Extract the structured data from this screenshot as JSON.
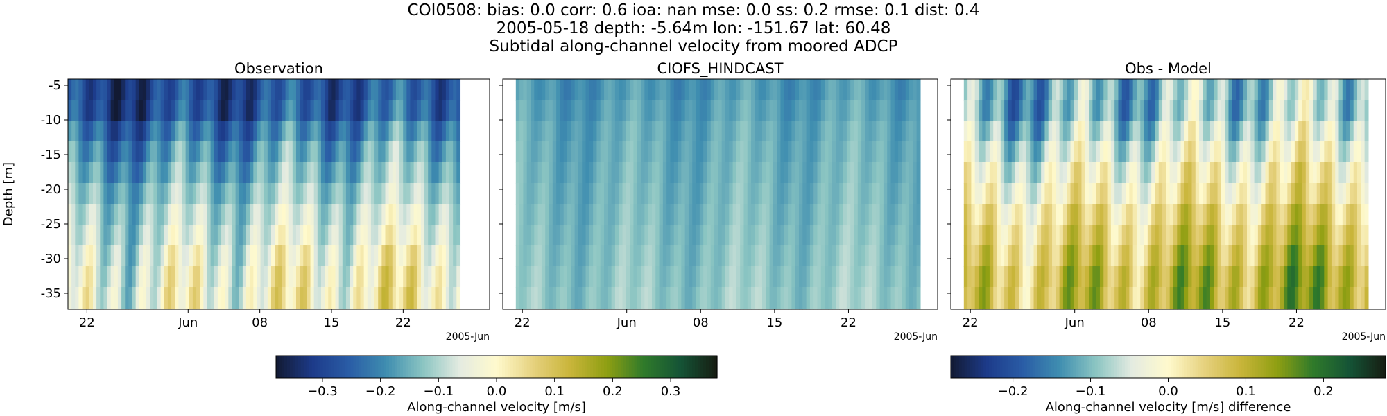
{
  "title_lines": [
    "COI0508: bias: 0.0  corr: 0.6  ioa: nan  mse: 0.0  ss: 0.2  rmse: 0.1  dist: 0.4",
    "2005-05-18 depth: -5.64m lon: -151.67 lat: 60.48",
    "Subtidal along-channel velocity from moored ADCP"
  ],
  "chart_data": [
    {
      "type": "heatmap",
      "title": "Observation",
      "ylabel": "Depth [m]",
      "x_tick_labels": [
        "22",
        "Jun",
        "08",
        "15",
        "22"
      ],
      "x_offset_label": "2005-Jun",
      "y_ticks": [
        -5,
        -10,
        -15,
        -20,
        -25,
        -30,
        -35
      ],
      "ylim": [
        -37.3,
        -4.1
      ],
      "colormap": "delta",
      "clim": [
        -0.38,
        0.38
      ],
      "depth_bins": [
        -5.6,
        -8.6,
        -11.6,
        -14.6,
        -17.6,
        -20.6,
        -23.6,
        -26.6,
        -29.6,
        -32.6,
        -35.6
      ],
      "layer_mean": [
        -0.28,
        -0.27,
        -0.22,
        -0.18,
        -0.15,
        -0.12,
        -0.09,
        -0.07,
        -0.04,
        -0.02,
        -0.01
      ],
      "layer_amplitude": [
        0.09,
        0.1,
        0.1,
        0.1,
        0.09,
        0.08,
        0.09,
        0.1,
        0.12,
        0.13,
        0.13
      ]
    },
    {
      "type": "heatmap",
      "title": "CIOFS_HINDCAST",
      "x_tick_labels": [
        "22",
        "Jun",
        "08",
        "15",
        "22"
      ],
      "x_offset_label": "2005-Jun",
      "colormap": "delta",
      "clim": [
        -0.38,
        0.38
      ],
      "depth_bins": [
        -5.6,
        -8.6,
        -11.6,
        -14.6,
        -17.6,
        -20.6,
        -23.6,
        -26.6,
        -29.6,
        -32.6,
        -35.6
      ],
      "layer_mean": [
        -0.18,
        -0.17,
        -0.16,
        -0.155,
        -0.15,
        -0.145,
        -0.14,
        -0.135,
        -0.13,
        -0.125,
        -0.12
      ],
      "layer_amplitude": [
        0.04,
        0.04,
        0.04,
        0.04,
        0.04,
        0.04,
        0.04,
        0.04,
        0.04,
        0.04,
        0.04
      ]
    },
    {
      "type": "heatmap",
      "title": "Obs - Model",
      "x_tick_labels": [
        "22",
        "Jun",
        "08",
        "15",
        "22"
      ],
      "x_offset_label": "2005-Jun",
      "colormap": "delta",
      "clim": [
        -0.28,
        0.28
      ],
      "depth_bins": [
        -5.6,
        -8.6,
        -11.6,
        -14.6,
        -17.6,
        -20.6,
        -23.6,
        -26.6,
        -29.6,
        -32.6,
        -35.6
      ],
      "layer_mean": [
        -0.1,
        -0.1,
        -0.07,
        -0.04,
        -0.01,
        0.01,
        0.04,
        0.06,
        0.08,
        0.1,
        0.1
      ],
      "layer_amplitude": [
        0.1,
        0.1,
        0.1,
        0.09,
        0.09,
        0.08,
        0.08,
        0.08,
        0.09,
        0.09,
        0.09
      ]
    }
  ],
  "colorbars": [
    {
      "label": "Along-channel velocity [m/s]",
      "ticks": [
        -0.3,
        -0.2,
        -0.1,
        0.0,
        0.1,
        0.2,
        0.3
      ],
      "tick_labels": [
        "−0.3",
        "−0.2",
        "−0.1",
        "0.0",
        "0.1",
        "0.2",
        "0.3"
      ],
      "vmin": -0.38,
      "vmax": 0.38
    },
    {
      "label": "Along-channel velocity [m/s] difference",
      "ticks": [
        -0.2,
        -0.1,
        0.0,
        0.1,
        0.2
      ],
      "tick_labels": [
        "−0.2",
        "−0.1",
        "0.0",
        "0.1",
        "0.2"
      ],
      "vmin": -0.28,
      "vmax": 0.28
    }
  ],
  "colors": {
    "colormap_stops": [
      "#121a33",
      "#1d3b8a",
      "#2a5da6",
      "#3f8eb0",
      "#8bc5c2",
      "#e4ebe1",
      "#fffacd",
      "#e6d17e",
      "#c9b53a",
      "#8f9f12",
      "#2f7a2a",
      "#155436",
      "#161c12"
    ],
    "axis": "#000000"
  }
}
